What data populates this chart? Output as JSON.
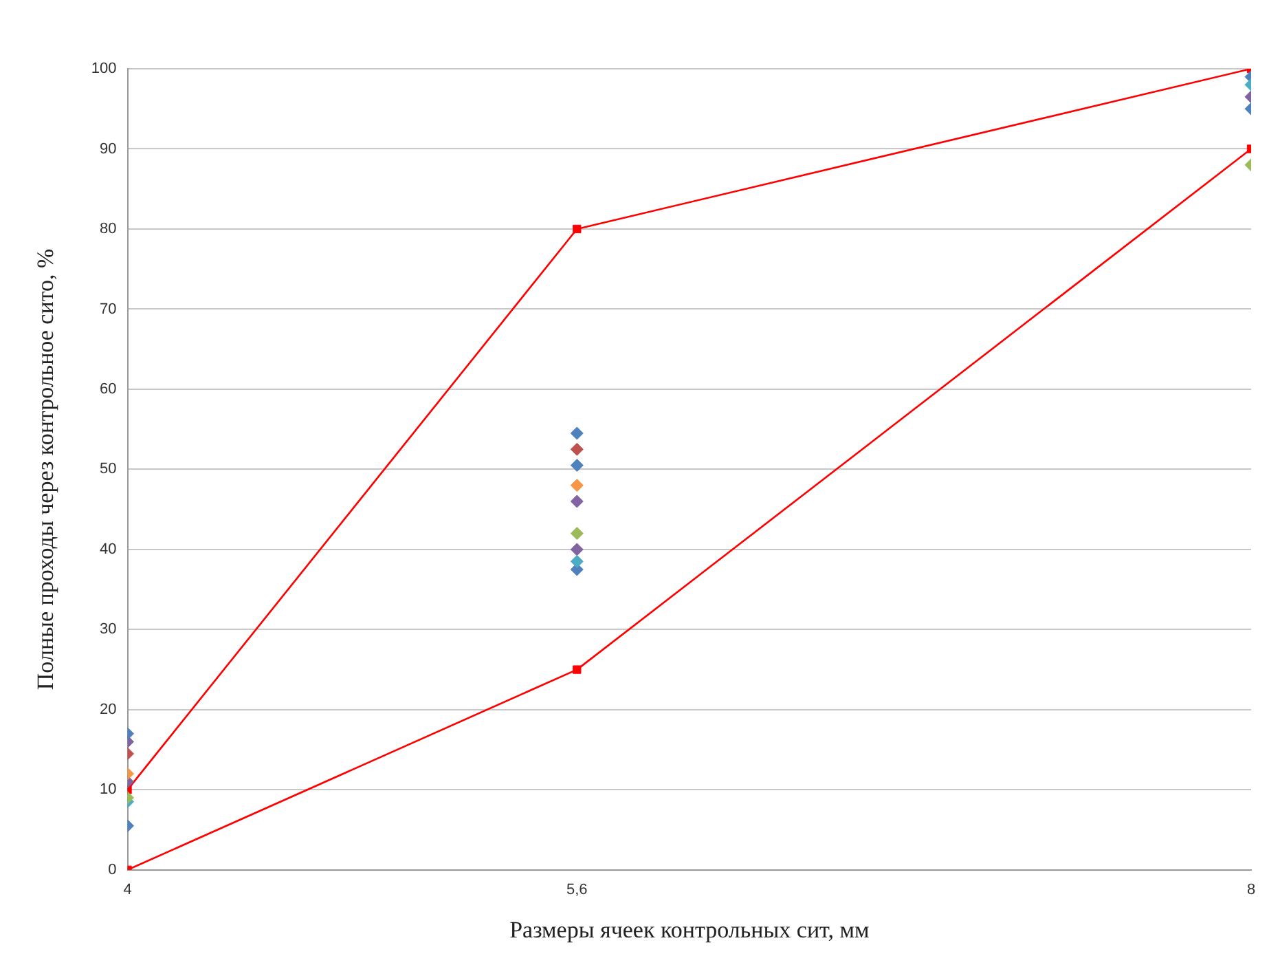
{
  "chart_data": {
    "type": "scatter",
    "xlabel": "Размеры ячеек контрольных сит, мм",
    "ylabel": "Полные проходы через контрольное сито, %",
    "x": [
      4,
      5.6,
      8
    ],
    "xlim": [
      4,
      8
    ],
    "xticks": [
      4,
      {
        "value": 5.6,
        "label": "5,6"
      },
      8
    ],
    "ylim": [
      0,
      100
    ],
    "yticks": [
      0,
      10,
      20,
      30,
      40,
      50,
      60,
      70,
      80,
      90,
      100
    ],
    "grid": "y",
    "legend": false,
    "marker": "diamond",
    "series": [
      {
        "color": "#4f81bd",
        "values": [
          5.5,
          54.5,
          95
        ]
      },
      {
        "color": "#f79646",
        "values": [
          12,
          48,
          null
        ]
      },
      {
        "color": "#8064a2",
        "values": [
          11,
          46,
          96.5
        ]
      },
      {
        "color": "#9bbb59",
        "values": [
          9,
          42,
          88
        ]
      },
      {
        "color": "#c0504d",
        "values": [
          14.5,
          52.5,
          null
        ]
      },
      {
        "color": "#4bacc6",
        "values": [
          8.5,
          38.5,
          98
        ]
      },
      {
        "color": "#4f81bd",
        "values": [
          17,
          37.5,
          null
        ]
      },
      {
        "color": "#8064a2",
        "values": [
          16,
          40,
          null
        ]
      },
      {
        "color": "#4f81bd",
        "values": [
          null,
          50.5,
          99
        ]
      },
      {
        "type": "line",
        "marker": "square",
        "line_style": "solid",
        "color": "#ff0000",
        "values": [
          10,
          80,
          100
        ]
      },
      {
        "type": "line",
        "marker": "square",
        "line_style": "solid",
        "color": "#ff0000",
        "values": [
          0,
          25,
          90
        ]
      }
    ]
  }
}
